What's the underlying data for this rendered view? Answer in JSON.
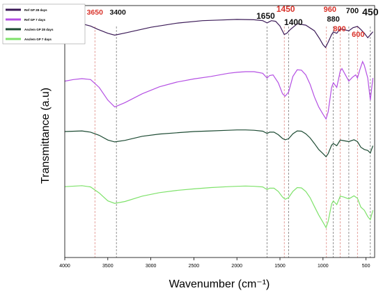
{
  "chart_data": {
    "type": "line",
    "xlabel": "Wavenumber (cm⁻¹)",
    "ylabel": "Transmittance (a.u)",
    "xlim": [
      4000,
      400
    ],
    "x_ticks": [
      4000,
      3500,
      3000,
      2500,
      2000,
      1500,
      1000,
      500
    ],
    "y_ticks": false,
    "grid": false,
    "legend_position": "top-left",
    "series": [
      {
        "name": "Ref GP 28 days",
        "color": "#3b1a57",
        "offset": 0.76,
        "points": [
          [
            4000,
            0.745
          ],
          [
            3800,
            0.742
          ],
          [
            3700,
            0.735
          ],
          [
            3620,
            0.725
          ],
          [
            3500,
            0.712
          ],
          [
            3420,
            0.706
          ],
          [
            3300,
            0.713
          ],
          [
            3000,
            0.731
          ],
          [
            2700,
            0.744
          ],
          [
            2400,
            0.752
          ],
          [
            2200,
            0.754
          ],
          [
            2000,
            0.756
          ],
          [
            1800,
            0.755
          ],
          [
            1700,
            0.752
          ],
          [
            1650,
            0.745
          ],
          [
            1600,
            0.752
          ],
          [
            1550,
            0.75
          ],
          [
            1500,
            0.735
          ],
          [
            1450,
            0.708
          ],
          [
            1420,
            0.712
          ],
          [
            1380,
            0.724
          ],
          [
            1300,
            0.742
          ],
          [
            1200,
            0.738
          ],
          [
            1100,
            0.72
          ],
          [
            1040,
            0.695
          ],
          [
            1000,
            0.676
          ],
          [
            970,
            0.667
          ],
          [
            940,
            0.684
          ],
          [
            900,
            0.708
          ],
          [
            880,
            0.716
          ],
          [
            840,
            0.712
          ],
          [
            800,
            0.726
          ],
          [
            760,
            0.724
          ],
          [
            700,
            0.72
          ],
          [
            650,
            0.73
          ],
          [
            600,
            0.734
          ],
          [
            560,
            0.724
          ],
          [
            520,
            0.712
          ],
          [
            480,
            0.698
          ],
          [
            450,
            0.707
          ],
          [
            420,
            0.717
          ]
        ]
      },
      {
        "name": "Ref GP 7 days",
        "color": "#b44fe3",
        "offset": 0.56,
        "points": [
          [
            4000,
            0.56
          ],
          [
            3900,
            0.565
          ],
          [
            3800,
            0.568
          ],
          [
            3700,
            0.565
          ],
          [
            3600,
            0.54
          ],
          [
            3500,
            0.5
          ],
          [
            3420,
            0.478
          ],
          [
            3300,
            0.492
          ],
          [
            3100,
            0.52
          ],
          [
            2900,
            0.542
          ],
          [
            2700,
            0.557
          ],
          [
            2500,
            0.567
          ],
          [
            2300,
            0.575
          ],
          [
            2100,
            0.585
          ],
          [
            2000,
            0.588
          ],
          [
            1900,
            0.59
          ],
          [
            1800,
            0.59
          ],
          [
            1700,
            0.585
          ],
          [
            1650,
            0.57
          ],
          [
            1620,
            0.578
          ],
          [
            1580,
            0.58
          ],
          [
            1520,
            0.555
          ],
          [
            1470,
            0.52
          ],
          [
            1440,
            0.512
          ],
          [
            1400,
            0.525
          ],
          [
            1350,
            0.575
          ],
          [
            1300,
            0.596
          ],
          [
            1250,
            0.595
          ],
          [
            1200,
            0.58
          ],
          [
            1150,
            0.55
          ],
          [
            1100,
            0.51
          ],
          [
            1050,
            0.478
          ],
          [
            1000,
            0.455
          ],
          [
            965,
            0.44
          ],
          [
            940,
            0.463
          ],
          [
            900,
            0.54
          ],
          [
            880,
            0.555
          ],
          [
            840,
            0.54
          ],
          [
            800,
            0.592
          ],
          [
            780,
            0.6
          ],
          [
            740,
            0.58
          ],
          [
            700,
            0.56
          ],
          [
            660,
            0.572
          ],
          [
            620,
            0.58
          ],
          [
            600,
            0.57
          ],
          [
            570,
            0.598
          ],
          [
            540,
            0.622
          ],
          [
            520,
            0.61
          ],
          [
            480,
            0.57
          ],
          [
            450,
            0.5
          ],
          [
            420,
            0.57
          ]
        ]
      },
      {
        "name": "Asclem GP 28 days",
        "color": "#1c4a32",
        "offset": 0.4,
        "points": [
          [
            4000,
            0.4
          ],
          [
            3800,
            0.402
          ],
          [
            3700,
            0.398
          ],
          [
            3600,
            0.388
          ],
          [
            3500,
            0.373
          ],
          [
            3420,
            0.367
          ],
          [
            3300,
            0.372
          ],
          [
            3100,
            0.385
          ],
          [
            2900,
            0.392
          ],
          [
            2700,
            0.396
          ],
          [
            2500,
            0.4
          ],
          [
            2300,
            0.402
          ],
          [
            2100,
            0.404
          ],
          [
            2000,
            0.405
          ],
          [
            1900,
            0.405
          ],
          [
            1800,
            0.404
          ],
          [
            1700,
            0.401
          ],
          [
            1650,
            0.394
          ],
          [
            1620,
            0.398
          ],
          [
            1570,
            0.398
          ],
          [
            1520,
            0.39
          ],
          [
            1470,
            0.378
          ],
          [
            1440,
            0.374
          ],
          [
            1400,
            0.377
          ],
          [
            1350,
            0.393
          ],
          [
            1300,
            0.402
          ],
          [
            1250,
            0.401
          ],
          [
            1200,
            0.393
          ],
          [
            1150,
            0.38
          ],
          [
            1100,
            0.362
          ],
          [
            1050,
            0.343
          ],
          [
            1000,
            0.33
          ],
          [
            965,
            0.32
          ],
          [
            940,
            0.33
          ],
          [
            900,
            0.357
          ],
          [
            880,
            0.362
          ],
          [
            840,
            0.355
          ],
          [
            800,
            0.373
          ],
          [
            760,
            0.371
          ],
          [
            700,
            0.368
          ],
          [
            640,
            0.374
          ],
          [
            600,
            0.368
          ],
          [
            560,
            0.35
          ],
          [
            520,
            0.343
          ],
          [
            480,
            0.34
          ],
          [
            450,
            0.332
          ],
          [
            420,
            0.355
          ]
        ]
      },
      {
        "name": "Asclem GP 7 days",
        "color": "#7ee26a",
        "offset": 0.22,
        "points": [
          [
            4000,
            0.225
          ],
          [
            3800,
            0.228
          ],
          [
            3700,
            0.224
          ],
          [
            3600,
            0.205
          ],
          [
            3500,
            0.18
          ],
          [
            3420,
            0.172
          ],
          [
            3300,
            0.178
          ],
          [
            3100,
            0.195
          ],
          [
            2900,
            0.206
          ],
          [
            2700,
            0.213
          ],
          [
            2500,
            0.218
          ],
          [
            2300,
            0.222
          ],
          [
            2100,
            0.225
          ],
          [
            2000,
            0.226
          ],
          [
            1900,
            0.227
          ],
          [
            1800,
            0.226
          ],
          [
            1700,
            0.224
          ],
          [
            1650,
            0.216
          ],
          [
            1620,
            0.22
          ],
          [
            1570,
            0.22
          ],
          [
            1520,
            0.21
          ],
          [
            1470,
            0.192
          ],
          [
            1440,
            0.185
          ],
          [
            1400,
            0.19
          ],
          [
            1350,
            0.21
          ],
          [
            1300,
            0.222
          ],
          [
            1250,
            0.221
          ],
          [
            1200,
            0.21
          ],
          [
            1150,
            0.19
          ],
          [
            1100,
            0.162
          ],
          [
            1050,
            0.135
          ],
          [
            1000,
            0.112
          ],
          [
            965,
            0.095
          ],
          [
            940,
            0.115
          ],
          [
            900,
            0.17
          ],
          [
            880,
            0.18
          ],
          [
            840,
            0.168
          ],
          [
            800,
            0.195
          ],
          [
            760,
            0.192
          ],
          [
            700,
            0.186
          ],
          [
            640,
            0.196
          ],
          [
            600,
            0.188
          ],
          [
            560,
            0.16
          ],
          [
            520,
            0.15
          ],
          [
            480,
            0.13
          ],
          [
            450,
            0.12
          ],
          [
            420,
            0.15
          ]
        ]
      }
    ],
    "annotations": [
      {
        "label": "3650",
        "x": 3650,
        "color": "#d9332b"
      },
      {
        "label": "3400",
        "x": 3400,
        "color": "#111111"
      },
      {
        "label": "1650",
        "x": 1650,
        "color": "#111111"
      },
      {
        "label": "1450",
        "x": 1450,
        "color": "#d9332b"
      },
      {
        "label": "1400",
        "x": 1400,
        "color": "#111111"
      },
      {
        "label": "960",
        "x": 960,
        "color": "#d9332b"
      },
      {
        "label": "880",
        "x": 880,
        "color": "#111111"
      },
      {
        "label": "800",
        "x": 800,
        "color": "#d9332b"
      },
      {
        "label": "700",
        "x": 700,
        "color": "#111111"
      },
      {
        "label": "600",
        "x": 600,
        "color": "#d9332b"
      },
      {
        "label": "450",
        "x": 450,
        "color": "#111111"
      }
    ]
  }
}
